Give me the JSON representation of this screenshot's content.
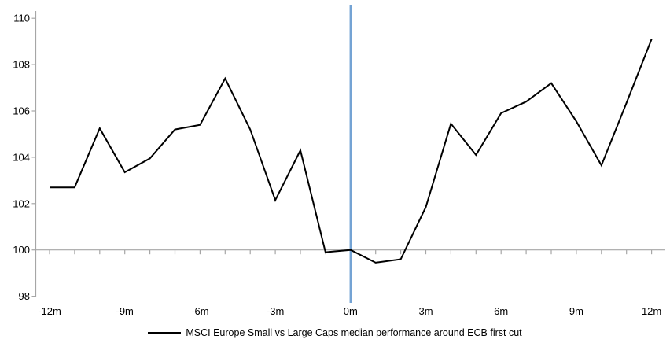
{
  "chart_data": {
    "type": "line",
    "title": "",
    "xlabel": "",
    "ylabel": "",
    "xlim": [
      -12,
      12
    ],
    "ylim": [
      98,
      110
    ],
    "y_ticks": [
      98,
      100,
      102,
      104,
      106,
      108,
      110
    ],
    "x_tick_label_positions": [
      -12,
      -9,
      -6,
      -3,
      0,
      3,
      6,
      9,
      12
    ],
    "x_tick_labels": [
      "-12m",
      "-9m",
      "-6m",
      "-3m",
      "0m",
      "3m",
      "6m",
      "9m",
      "12m"
    ],
    "x_minor_tick_every": 1,
    "baseline_value": 100,
    "event_line_x": 0,
    "grid": "baseline-only",
    "legend_position": "bottom",
    "x": [
      -12,
      -11,
      -10,
      -9,
      -8,
      -7,
      -6,
      -5,
      -4,
      -3,
      -2,
      -1,
      0,
      1,
      2,
      3,
      4,
      5,
      6,
      7,
      8,
      9,
      10,
      11,
      12
    ],
    "series": [
      {
        "name": "MSCI Europe Small vs Large Caps median performance around ECB first cut",
        "values": [
          102.7,
          102.7,
          105.25,
          103.35,
          103.95,
          105.2,
          105.4,
          107.4,
          105.2,
          102.15,
          104.3,
          99.9,
          100.0,
          99.45,
          99.6,
          101.85,
          105.45,
          104.1,
          105.9,
          106.4,
          107.2,
          105.55,
          103.65,
          106.35,
          109.1
        ]
      }
    ]
  },
  "colors": {
    "series_line": "#000000",
    "event_line": "#74A3D4",
    "axis_line": "#A6A6A6",
    "tick_text": "#000000"
  },
  "legend": {
    "label": "MSCI Europe Small vs Large Caps median performance around ECB first cut"
  }
}
